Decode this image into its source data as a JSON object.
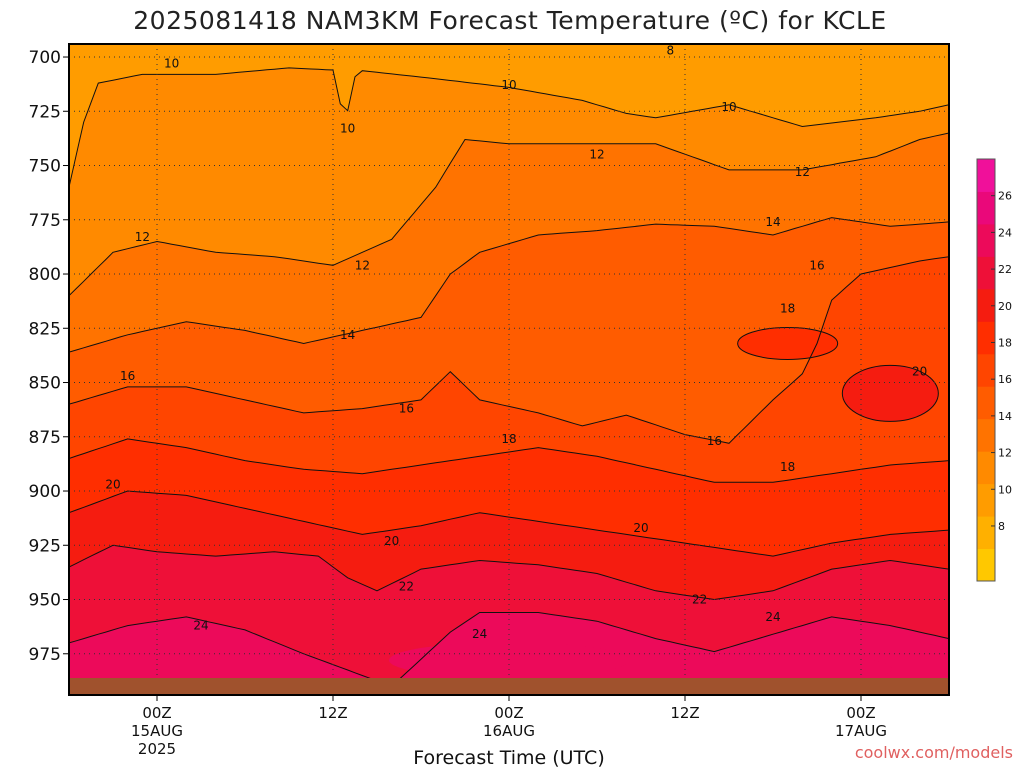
{
  "chart_data": {
    "type": "heatmap",
    "title": "2025081418 NAM3KM Forecast Temperature (ºC) for KCLE",
    "xlabel": "Forecast Time (UTC)",
    "ylabel": "",
    "x_ticks": [
      {
        "label": "00Z",
        "sub": "15AUG",
        "sub2": "2025",
        "hour": 6
      },
      {
        "label": "12Z",
        "sub": "",
        "sub2": "",
        "hour": 18
      },
      {
        "label": "00Z",
        "sub": "16AUG",
        "sub2": "",
        "hour": 30
      },
      {
        "label": "12Z",
        "sub": "",
        "sub2": "",
        "hour": 42
      },
      {
        "label": "00Z",
        "sub": "17AUG",
        "sub2": "",
        "hour": 54
      }
    ],
    "x_range_hours": [
      0,
      60
    ],
    "y_ticks": [
      700,
      725,
      750,
      775,
      800,
      825,
      850,
      875,
      900,
      925,
      950,
      975
    ],
    "y_range": [
      694,
      994
    ],
    "grid": "dotted",
    "colorbar": {
      "ticks": [
        8,
        10,
        12,
        14,
        16,
        18,
        20,
        22,
        24,
        26
      ],
      "range": [
        5,
        28
      ],
      "colors": [
        "#ffc800",
        "#ffb000",
        "#ff9c00",
        "#ff8a00",
        "#ff7300",
        "#ff5c00",
        "#ff4500",
        "#ff2e00",
        "#f51c10",
        "#ee1038",
        "#ec0a5a",
        "#ea087a",
        "#f0109a"
      ]
    },
    "contour_levels": [
      10,
      12,
      14,
      16,
      18,
      20,
      22,
      24
    ],
    "isotherms": [
      {
        "level": 10,
        "pressure_hr0": 760,
        "pressure": [
          [
            0,
            760
          ],
          [
            1,
            730
          ],
          [
            2,
            712
          ],
          [
            5,
            708
          ],
          [
            10,
            708
          ],
          [
            15,
            705
          ],
          [
            18,
            706
          ],
          [
            18.8,
            731
          ],
          [
            19.6,
            706
          ],
          [
            25,
            710
          ],
          [
            30,
            714
          ],
          [
            35,
            720
          ],
          [
            38,
            726
          ],
          [
            40,
            728
          ],
          [
            45,
            722
          ],
          [
            48,
            728
          ],
          [
            50,
            732
          ],
          [
            55,
            728
          ],
          [
            58,
            725
          ],
          [
            60,
            722
          ]
        ]
      },
      {
        "level": 12,
        "pressure": [
          [
            0,
            810
          ],
          [
            3,
            790
          ],
          [
            6,
            785
          ],
          [
            10,
            790
          ],
          [
            14,
            792
          ],
          [
            18,
            796
          ],
          [
            22,
            784
          ],
          [
            25,
            760
          ],
          [
            27,
            738
          ],
          [
            30,
            740
          ],
          [
            35,
            740
          ],
          [
            40,
            740
          ],
          [
            45,
            752
          ],
          [
            50,
            752
          ],
          [
            55,
            746
          ],
          [
            58,
            738
          ],
          [
            60,
            735
          ]
        ]
      },
      {
        "level": 14,
        "pressure": [
          [
            0,
            836
          ],
          [
            4,
            828
          ],
          [
            8,
            822
          ],
          [
            12,
            826
          ],
          [
            16,
            832
          ],
          [
            20,
            826
          ],
          [
            24,
            820
          ],
          [
            26,
            800
          ],
          [
            28,
            790
          ],
          [
            32,
            782
          ],
          [
            36,
            780
          ],
          [
            40,
            777
          ],
          [
            44,
            778
          ],
          [
            48,
            782
          ],
          [
            52,
            774
          ],
          [
            56,
            778
          ],
          [
            60,
            776
          ]
        ]
      },
      {
        "level": 16,
        "pressure": [
          [
            0,
            860
          ],
          [
            4,
            852
          ],
          [
            8,
            852
          ],
          [
            12,
            858
          ],
          [
            16,
            864
          ],
          [
            20,
            862
          ],
          [
            24,
            858
          ],
          [
            26,
            845
          ],
          [
            28,
            858
          ],
          [
            32,
            864
          ],
          [
            35,
            870
          ],
          [
            38,
            865
          ],
          [
            42,
            874
          ],
          [
            45,
            878
          ],
          [
            48,
            858
          ],
          [
            50,
            846
          ],
          [
            51,
            832
          ],
          [
            52,
            812
          ],
          [
            54,
            800
          ],
          [
            58,
            794
          ],
          [
            60,
            792
          ]
        ]
      },
      {
        "level": 18,
        "pressure": [
          [
            0,
            885
          ],
          [
            4,
            876
          ],
          [
            8,
            880
          ],
          [
            12,
            886
          ],
          [
            16,
            890
          ],
          [
            20,
            892
          ],
          [
            24,
            888
          ],
          [
            28,
            884
          ],
          [
            32,
            880
          ],
          [
            36,
            884
          ],
          [
            40,
            890
          ],
          [
            44,
            896
          ],
          [
            48,
            896
          ],
          [
            52,
            892
          ],
          [
            56,
            888
          ],
          [
            60,
            886
          ]
        ]
      },
      {
        "level": 20,
        "pressure": [
          [
            0,
            910
          ],
          [
            4,
            900
          ],
          [
            8,
            902
          ],
          [
            12,
            908
          ],
          [
            16,
            914
          ],
          [
            20,
            920
          ],
          [
            24,
            916
          ],
          [
            28,
            910
          ],
          [
            32,
            914
          ],
          [
            36,
            918
          ],
          [
            40,
            922
          ],
          [
            44,
            926
          ],
          [
            48,
            930
          ],
          [
            52,
            924
          ],
          [
            56,
            920
          ],
          [
            60,
            918
          ]
        ]
      },
      {
        "level": 22,
        "pressure": [
          [
            0,
            935
          ],
          [
            3,
            925
          ],
          [
            6,
            928
          ],
          [
            10,
            930
          ],
          [
            14,
            928
          ],
          [
            17,
            930
          ],
          [
            19,
            940
          ],
          [
            21,
            946
          ],
          [
            24,
            936
          ],
          [
            28,
            932
          ],
          [
            32,
            934
          ],
          [
            36,
            938
          ],
          [
            40,
            946
          ],
          [
            44,
            950
          ],
          [
            48,
            946
          ],
          [
            52,
            936
          ],
          [
            56,
            932
          ],
          [
            60,
            936
          ]
        ]
      },
      {
        "level": 24,
        "pressure": [
          [
            0,
            970
          ],
          [
            4,
            962
          ],
          [
            8,
            958
          ],
          [
            12,
            964
          ],
          [
            16,
            975
          ],
          [
            22,
            990
          ],
          [
            26,
            965
          ],
          [
            28,
            956
          ],
          [
            32,
            956
          ],
          [
            36,
            960
          ],
          [
            40,
            968
          ],
          [
            44,
            974
          ],
          [
            48,
            966
          ],
          [
            52,
            958
          ],
          [
            56,
            962
          ],
          [
            60,
            968
          ]
        ]
      }
    ],
    "contour_labels": [
      {
        "text": "8",
        "hour": 41,
        "pressure": 697
      },
      {
        "text": "10",
        "hour": 7,
        "pressure": 703
      },
      {
        "text": "10",
        "hour": 19,
        "pressure": 733
      },
      {
        "text": "10",
        "hour": 30,
        "pressure": 713
      },
      {
        "text": "10",
        "hour": 45,
        "pressure": 723
      },
      {
        "text": "12",
        "hour": 5,
        "pressure": 783
      },
      {
        "text": "12",
        "hour": 20,
        "pressure": 796
      },
      {
        "text": "12",
        "hour": 36,
        "pressure": 745
      },
      {
        "text": "12",
        "hour": 50,
        "pressure": 753
      },
      {
        "text": "14",
        "hour": 19,
        "pressure": 828
      },
      {
        "text": "14",
        "hour": 48,
        "pressure": 776
      },
      {
        "text": "16",
        "hour": 4,
        "pressure": 847
      },
      {
        "text": "16",
        "hour": 23,
        "pressure": 862
      },
      {
        "text": "16",
        "hour": 44,
        "pressure": 877
      },
      {
        "text": "16",
        "hour": 51,
        "pressure": 796
      },
      {
        "text": "18",
        "hour": 30,
        "pressure": 876
      },
      {
        "text": "18",
        "hour": 49,
        "pressure": 889
      },
      {
        "text": "18",
        "hour": 49,
        "pressure": 816
      },
      {
        "text": "20",
        "hour": 3,
        "pressure": 897
      },
      {
        "text": "20",
        "hour": 22,
        "pressure": 923
      },
      {
        "text": "20",
        "hour": 39,
        "pressure": 917
      },
      {
        "text": "20",
        "hour": 58,
        "pressure": 845
      },
      {
        "text": "22",
        "hour": 23,
        "pressure": 944
      },
      {
        "text": "22",
        "hour": 43,
        "pressure": 950
      },
      {
        "text": "24",
        "hour": 9,
        "pressure": 962
      },
      {
        "text": "24",
        "hour": 28,
        "pressure": 966
      },
      {
        "text": "24",
        "hour": 48,
        "pressure": 958
      }
    ],
    "ground_color": "#a0522d",
    "credit": "coolwx.com/models"
  }
}
